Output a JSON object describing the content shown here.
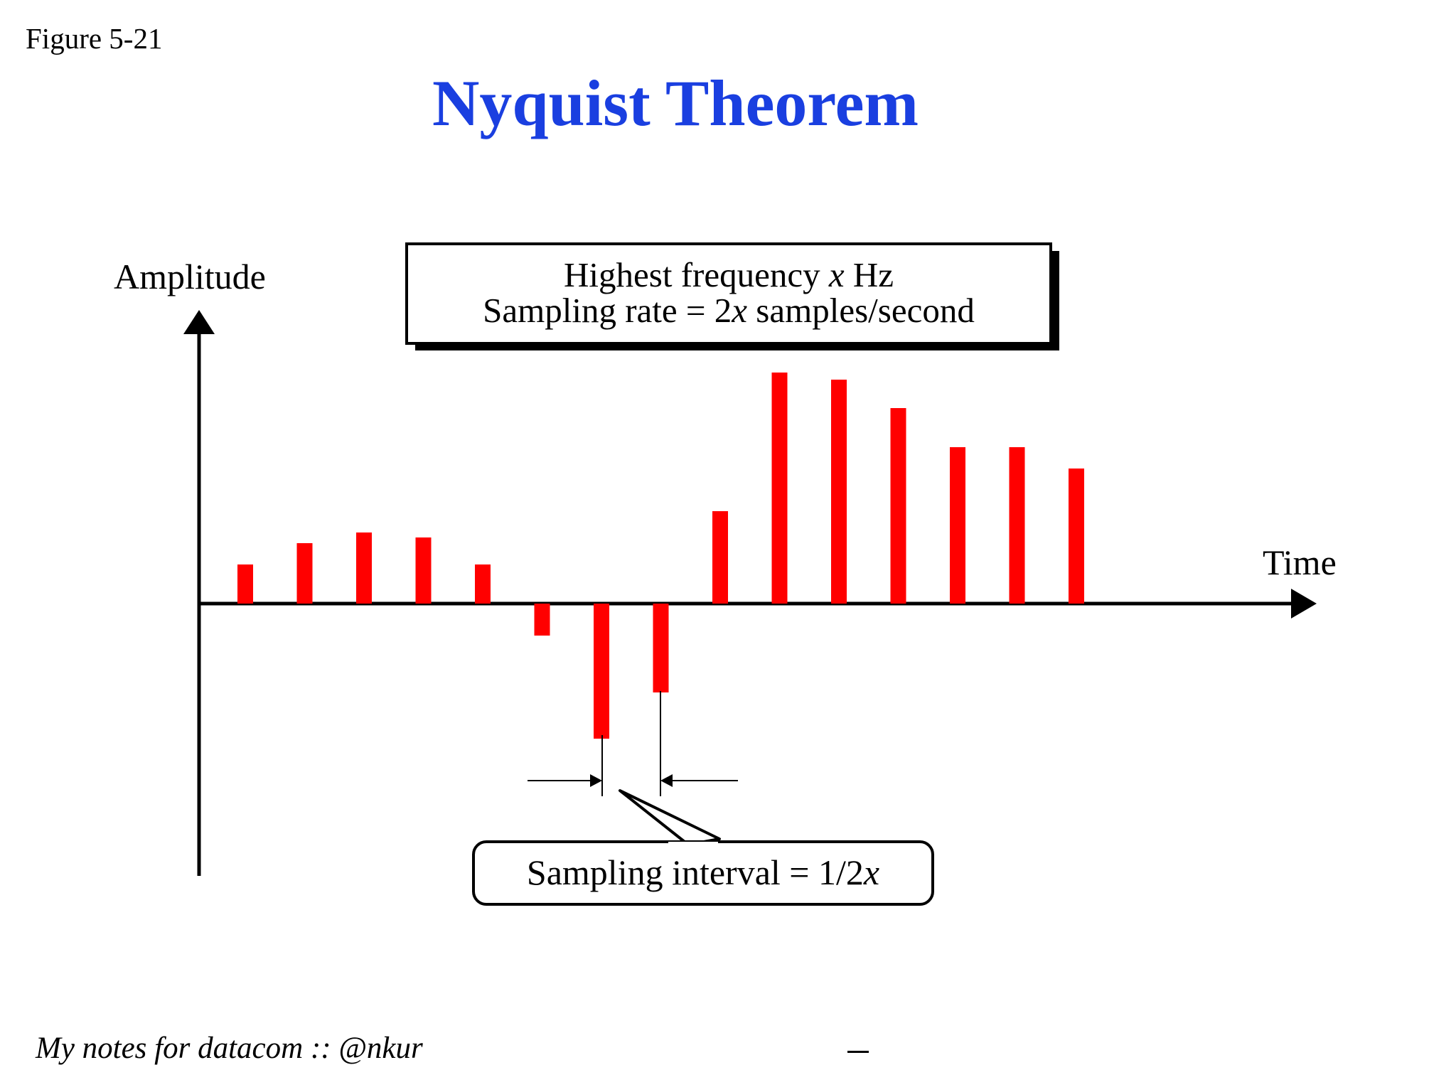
{
  "figure_label": "Figure 5-21",
  "title": "Nyquist Theorem",
  "axes": {
    "y_label": "Amplitude",
    "x_label": "Time"
  },
  "info_box": {
    "line1_prefix": "Highest frequency ",
    "line1_var": "x",
    "line1_suffix": "  Hz",
    "line2_prefix": "Sampling rate =   2",
    "line2_var": "x",
    "line2_suffix": " samples/second"
  },
  "interval_label": {
    "prefix": "Sampling interval = 1/2",
    "var": "x"
  },
  "samples": [
    0.55,
    0.85,
    1.0,
    0.93,
    0.55,
    -0.45,
    -1.9,
    -1.25,
    1.3,
    3.25,
    3.15,
    2.75,
    2.2,
    2.2,
    1.9
  ],
  "colors": {
    "title": "#1a3fe0",
    "sample": "#ff0000",
    "axis": "#000000"
  },
  "footer": {
    "note": "My notes for datacom :: @nkur"
  }
}
